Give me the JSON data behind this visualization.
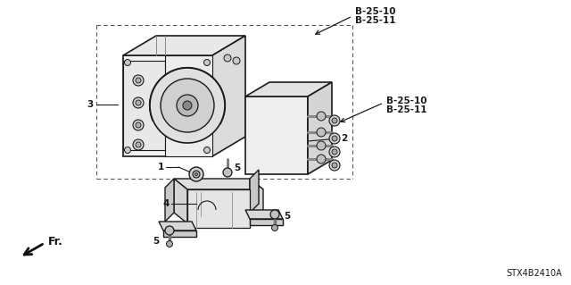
{
  "background_color": "#ffffff",
  "line_color": "#1a1a1a",
  "text_color": "#1a1a1a",
  "labels": {
    "top_b2510": "B-25-10",
    "top_b2511": "B-25-11",
    "mid_b2510": "B-25-10",
    "mid_b2511": "B-25-11",
    "label_1": "1",
    "label_2": "2",
    "label_3": "3",
    "label_4": "4",
    "label_5a": "5",
    "label_5b": "5",
    "label_5c": "5",
    "fr_label": "Fr.",
    "diagram_id": "STX4B2410A"
  },
  "fig_width": 6.4,
  "fig_height": 3.19
}
